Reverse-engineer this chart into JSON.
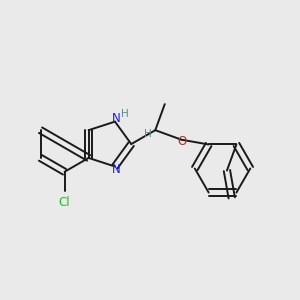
{
  "background_color": "#eaeaea",
  "bond_color": "#1a1a1a",
  "bond_width": 1.4,
  "figsize": [
    3.0,
    3.0
  ],
  "dpi": 100,
  "atom_labels": {
    "Cl": {
      "color": "#22bb22",
      "fontsize": 8.5
    },
    "N": {
      "color": "#1a1aee",
      "fontsize": 8.5
    },
    "H": {
      "color": "#5a8a8a",
      "fontsize": 7.5
    },
    "O": {
      "color": "#cc2222",
      "fontsize": 8.5
    }
  }
}
